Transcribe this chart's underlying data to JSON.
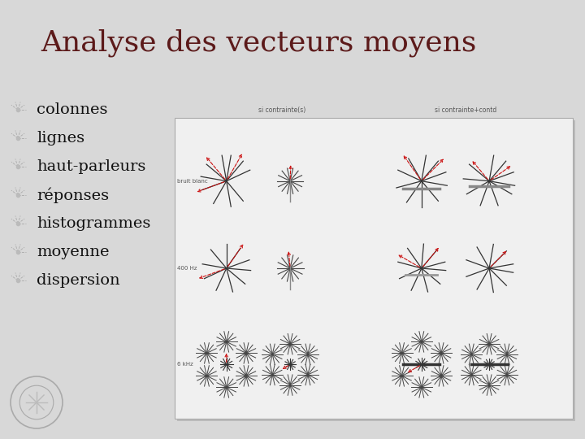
{
  "title": "Analyse des vecteurs moyens",
  "title_color": "#5C1A1A",
  "title_fontsize": 26,
  "bullet_items": [
    "colonnes",
    "lignes",
    "haut-parleurs",
    "réponses",
    "histogrammes",
    "moyenne",
    "dispersion"
  ],
  "bullet_fontsize": 14,
  "bullet_text_color": "#111111",
  "bg_color": "#D8D8D8",
  "panel_bg": "#F0F0F0",
  "row_labels": [
    "bruit blanc",
    "400 Hz",
    "6 kHz"
  ],
  "col_labels": [
    "si contrainte(s)",
    "si contrainte+contd"
  ],
  "label_color": "#555555"
}
